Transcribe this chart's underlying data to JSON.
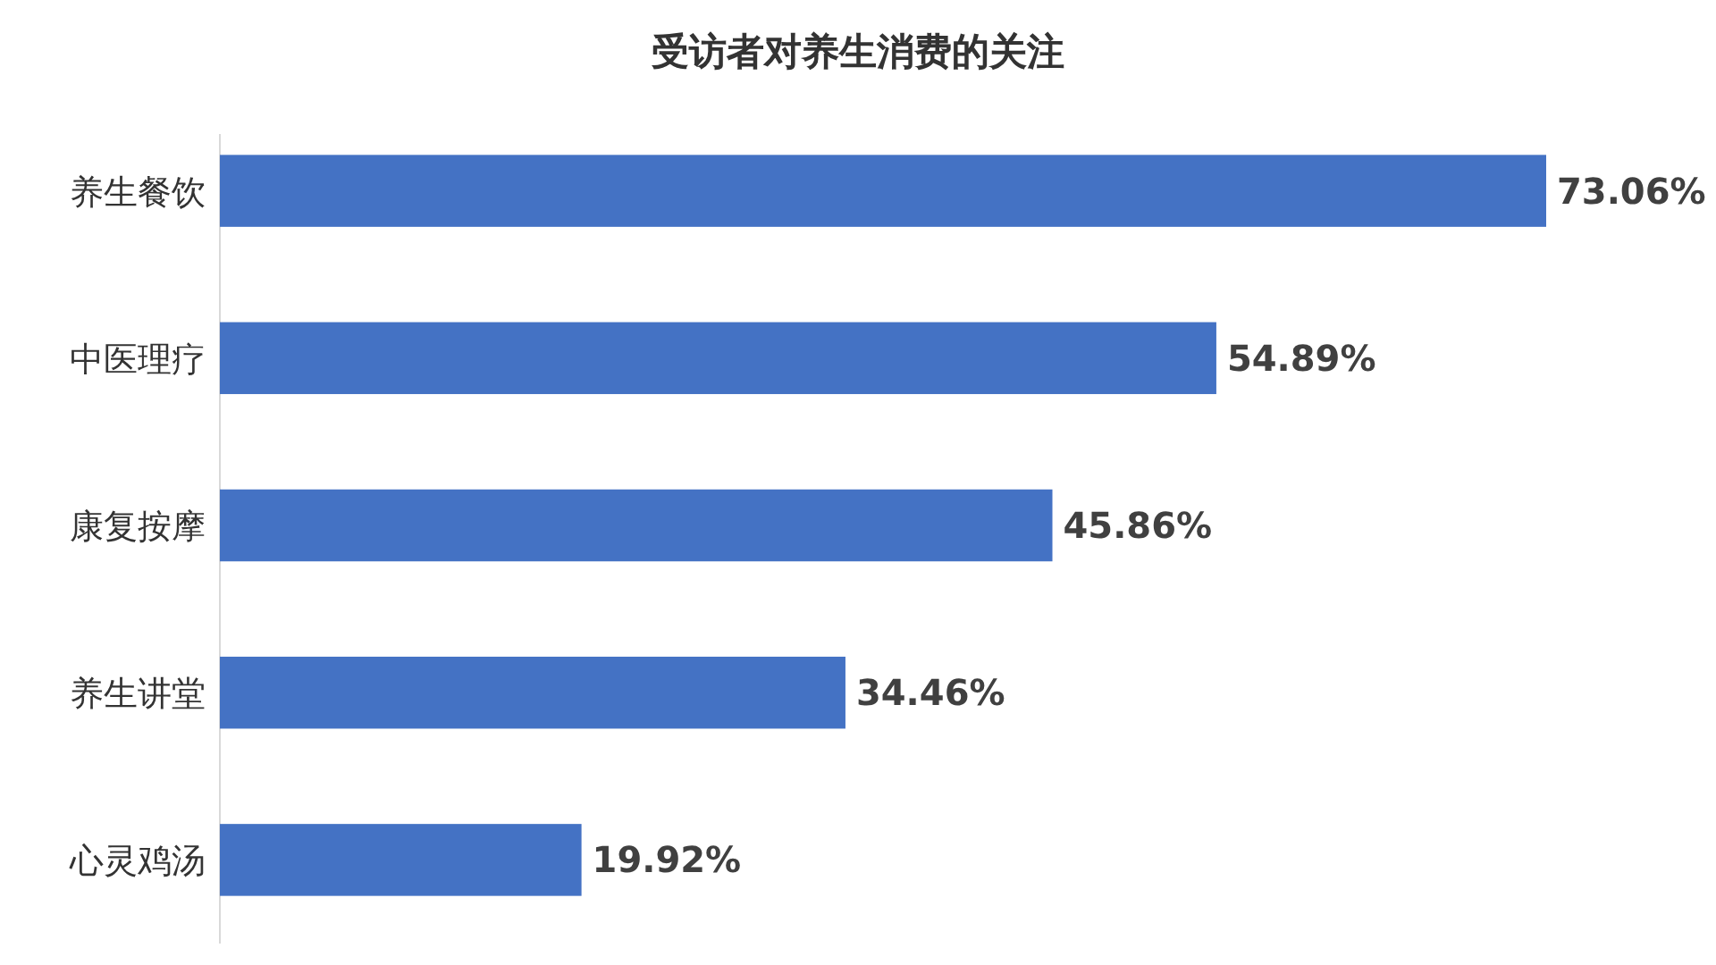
{
  "chart_data": {
    "type": "bar",
    "orientation": "horizontal",
    "title": "受访者对养生消费的关注",
    "categories": [
      "养生餐饮",
      "中医理疗",
      "康复按摩",
      "养生讲堂",
      "心灵鸡汤"
    ],
    "values": [
      73.06,
      54.89,
      45.86,
      34.46,
      19.92
    ],
    "value_labels": [
      "73.06%",
      "54.89%",
      "45.86%",
      "34.46%",
      "19.92%"
    ],
    "color": "#4472c4"
  }
}
